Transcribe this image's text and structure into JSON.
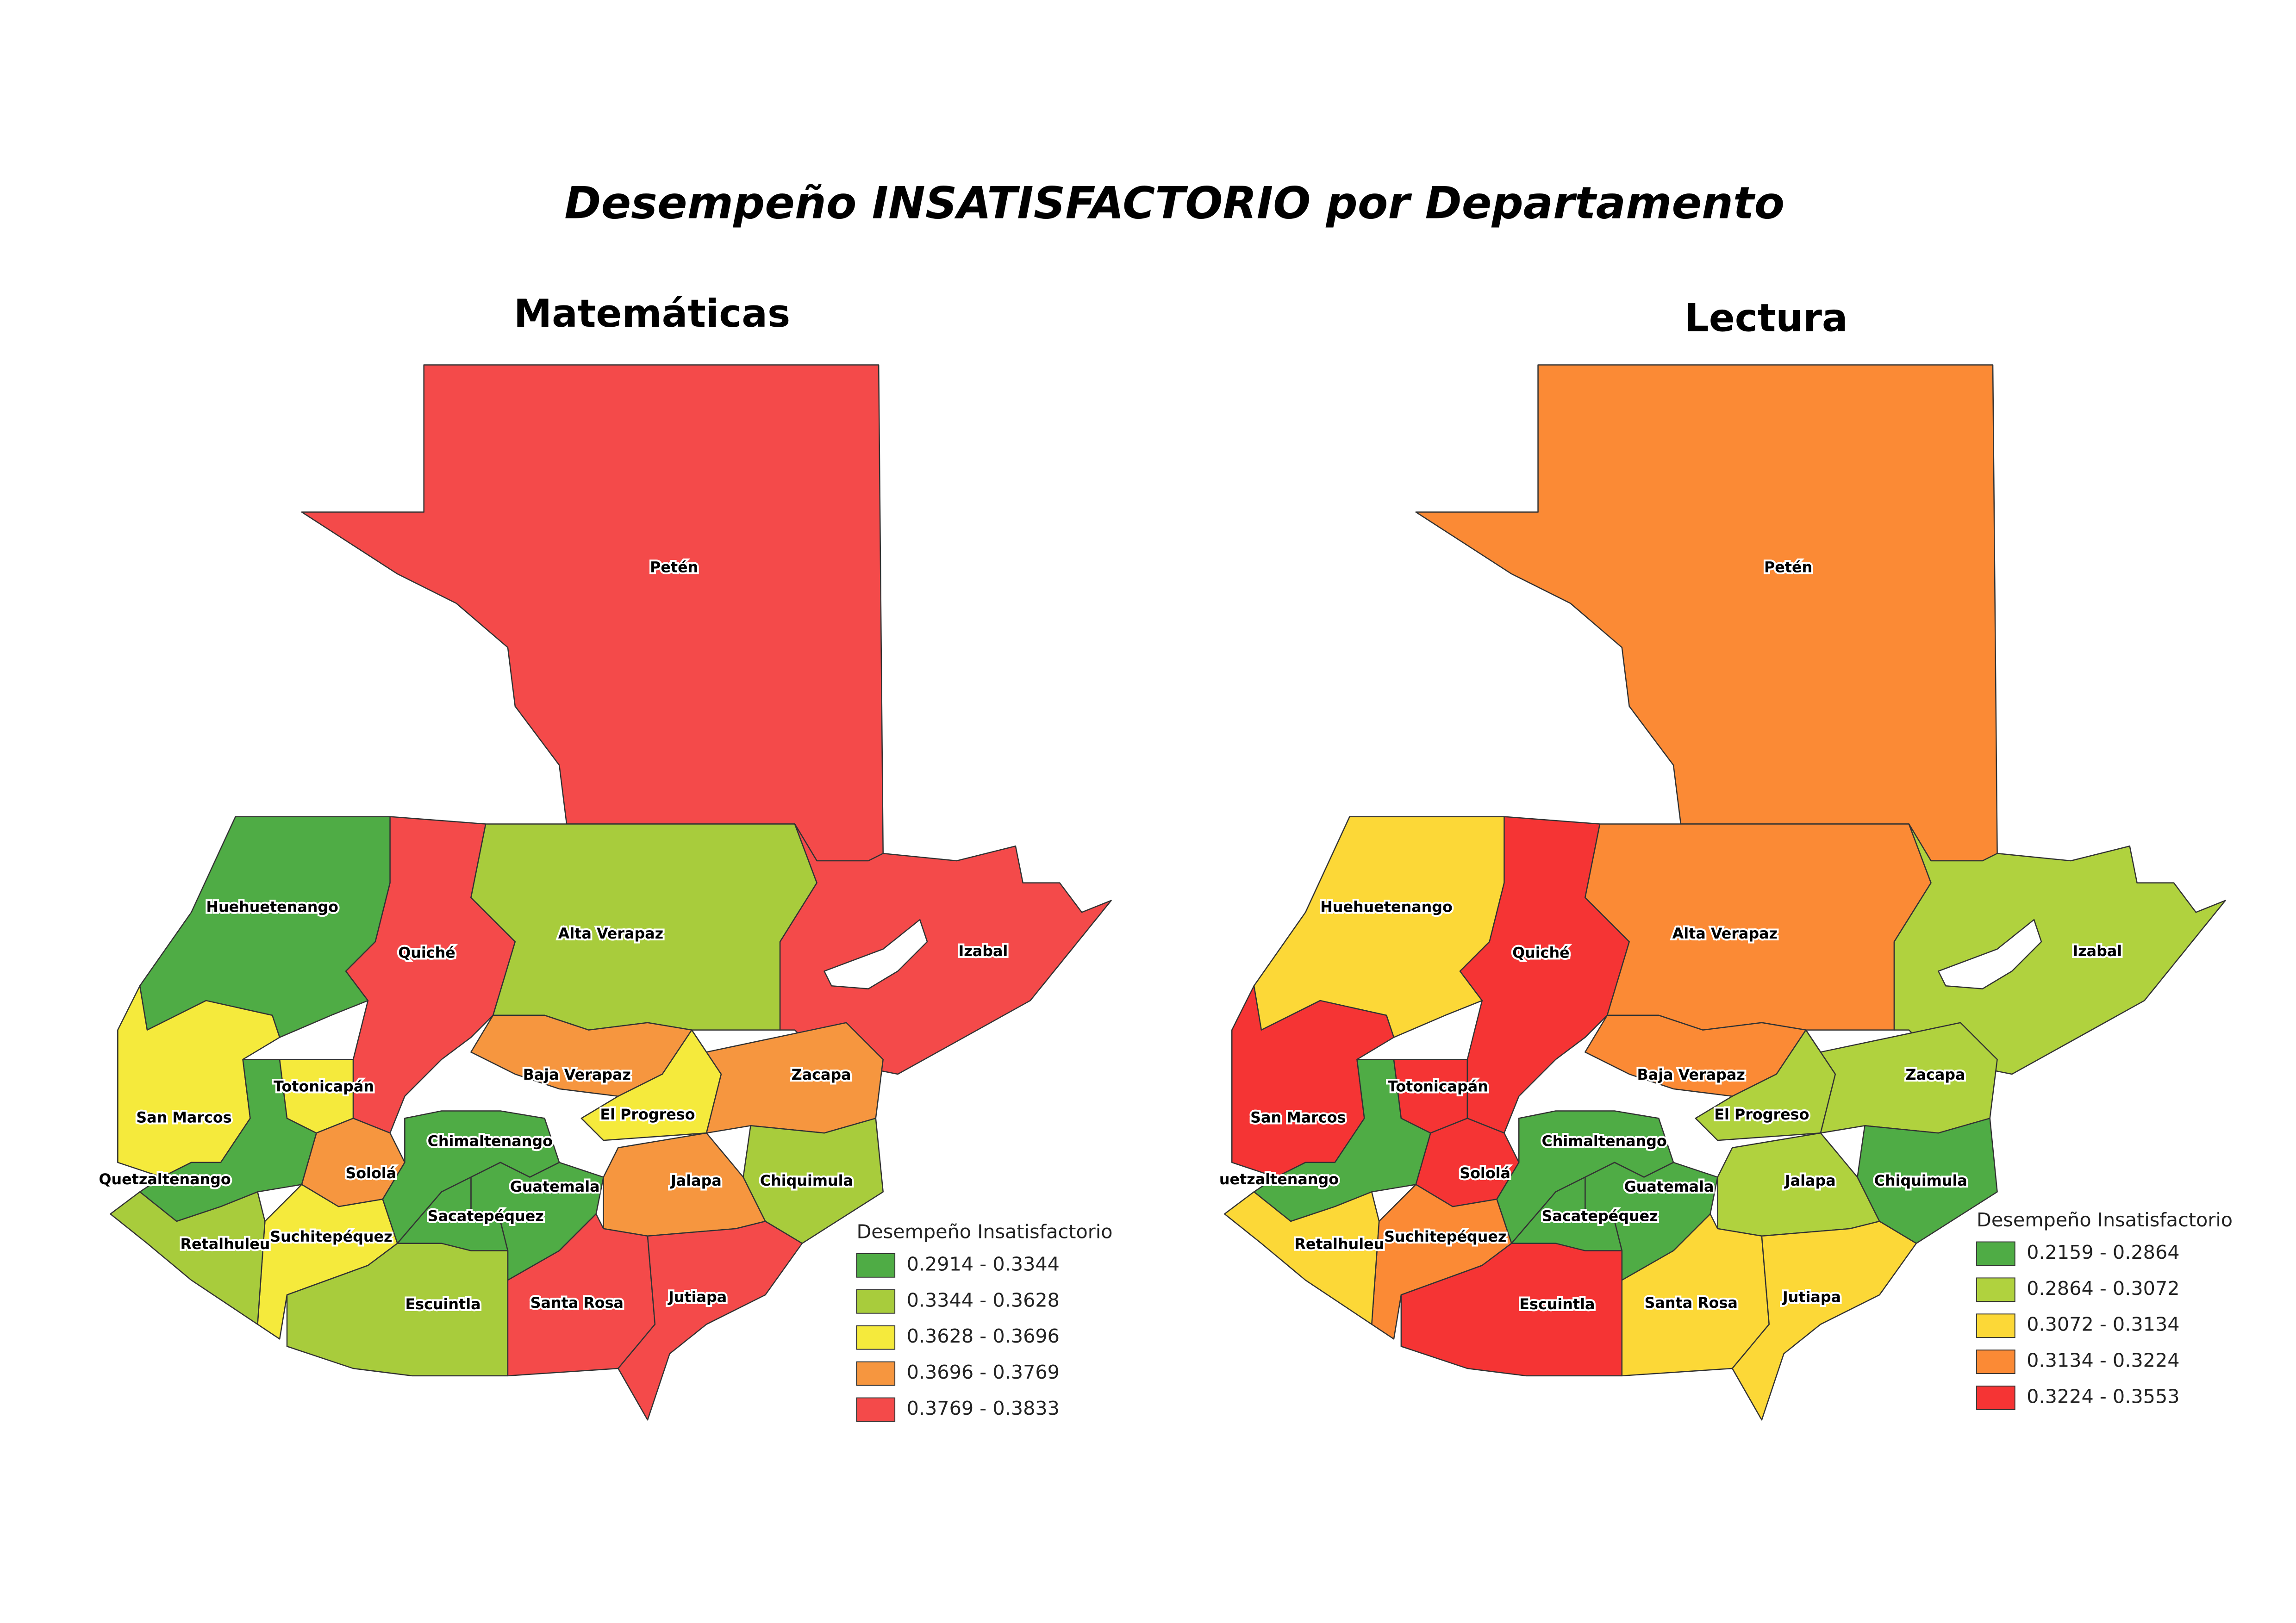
{
  "title": "Desempeño INSATISFACTORIO por Departamento",
  "maps": [
    {
      "subtitle": "Matemáticas",
      "departments": [
        {
          "name": "Petén",
          "color": "#f44a4a"
        },
        {
          "name": "Huehuetenango",
          "color": "#4fac45"
        },
        {
          "name": "San Marcos",
          "color": "#f5ea3c"
        },
        {
          "name": "Quetzaltenango",
          "color": "#4fac45"
        },
        {
          "name": "Totonicapán",
          "color": "#f5ea3c"
        },
        {
          "name": "Quiché",
          "color": "#f44a4a"
        },
        {
          "name": "Alta Verapaz",
          "color": "#a8cc3c"
        },
        {
          "name": "Izabal",
          "color": "#f44a4a"
        },
        {
          "name": "Baja Verapaz",
          "color": "#f6963f"
        },
        {
          "name": "El Progreso",
          "color": "#f5ea3c"
        },
        {
          "name": "Zacapa",
          "color": "#f6963f"
        },
        {
          "name": "Sololá",
          "color": "#f6963f"
        },
        {
          "name": "Chimaltenango",
          "color": "#4fac45"
        },
        {
          "name": "Guatemala",
          "color": "#4fac45"
        },
        {
          "name": "Sacatepéquez",
          "color": "#4fac45"
        },
        {
          "name": "Jalapa",
          "color": "#f6963f"
        },
        {
          "name": "Chiquimula",
          "color": "#a8cc3c"
        },
        {
          "name": "Suchitepéquez",
          "color": "#f5ea3c"
        },
        {
          "name": "Retalhuleu",
          "color": "#a8cc3c"
        },
        {
          "name": "Escuintla",
          "color": "#a8cc3c"
        },
        {
          "name": "Santa Rosa",
          "color": "#f44a4a"
        },
        {
          "name": "Jutiapa",
          "color": "#f44a4a"
        }
      ],
      "legend": {
        "title": "Desempeño Insatisfactorio",
        "items": [
          {
            "label": "0.2914 - 0.3344",
            "color": "#4fac45"
          },
          {
            "label": "0.3344 - 0.3628",
            "color": "#a8cc3c"
          },
          {
            "label": "0.3628 - 0.3696",
            "color": "#f5ea3c"
          },
          {
            "label": "0.3696 - 0.3769",
            "color": "#f6963f"
          },
          {
            "label": "0.3769 - 0.3833",
            "color": "#f44a4a"
          }
        ]
      }
    },
    {
      "subtitle": "Lectura",
      "departments": [
        {
          "name": "Petén",
          "color": "#fb8a35"
        },
        {
          "name": "Huehuetenango",
          "color": "#fcd837"
        },
        {
          "name": "San Marcos",
          "color": "#f53434"
        },
        {
          "name": "uetzaltenango",
          "color": "#4fac45"
        },
        {
          "name": "Totonicapán",
          "color": "#f53434"
        },
        {
          "name": "Quiché",
          "color": "#f53434"
        },
        {
          "name": "Alta Verapaz",
          "color": "#fb8a35"
        },
        {
          "name": "Izabal",
          "color": "#b0d23e"
        },
        {
          "name": "Baja Verapaz",
          "color": "#fb8a35"
        },
        {
          "name": "El Progreso",
          "color": "#b0d23e"
        },
        {
          "name": "Zacapa",
          "color": "#b0d23e"
        },
        {
          "name": "Sololá",
          "color": "#f53434"
        },
        {
          "name": "Chimaltenango",
          "color": "#4fac45"
        },
        {
          "name": "Guatemala",
          "color": "#4fac45"
        },
        {
          "name": "Sacatepéquez",
          "color": "#4fac45"
        },
        {
          "name": "Jalapa",
          "color": "#b0d23e"
        },
        {
          "name": "Chiquimula",
          "color": "#4fac45"
        },
        {
          "name": "Suchitepéquez",
          "color": "#fb8a35"
        },
        {
          "name": "Retalhuleu",
          "color": "#fcd837"
        },
        {
          "name": "Escuintla",
          "color": "#f53434"
        },
        {
          "name": "Santa Rosa",
          "color": "#fcd837"
        },
        {
          "name": "Jutiapa",
          "color": "#fcd837"
        }
      ],
      "legend": {
        "title": "Desempeño Insatisfactorio",
        "items": [
          {
            "label": "0.2159 - 0.2864",
            "color": "#4fac45"
          },
          {
            "label": "0.2864 - 0.3072",
            "color": "#b0d23e"
          },
          {
            "label": "0.3072 - 0.3134",
            "color": "#fcd837"
          },
          {
            "label": "0.3134 - 0.3224",
            "color": "#fb8a35"
          },
          {
            "label": "0.3224 - 0.3553",
            "color": "#f53434"
          }
        ]
      }
    }
  ]
}
